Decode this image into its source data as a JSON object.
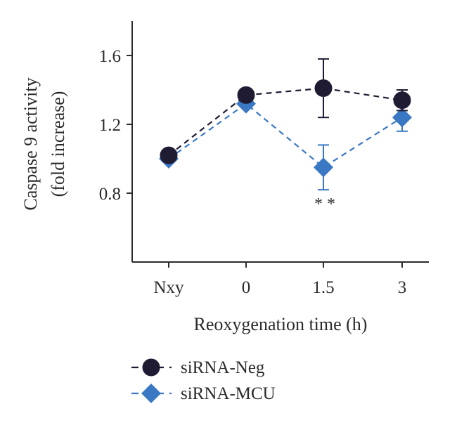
{
  "chart_data": {
    "type": "line",
    "title": "",
    "xlabel": "Reoxygenation time (h)",
    "ylabel_line1": "Caspase 9 activity",
    "ylabel_line2": "(fold increase)",
    "categories": [
      "Nxy",
      "0",
      "1.5",
      "3"
    ],
    "yticks": [
      "0.8",
      "1.2",
      "1.6"
    ],
    "ylim": [
      0.4,
      1.8
    ],
    "series": [
      {
        "name": "siRNA-Neg",
        "marker": "circle",
        "color": "#1f1b33",
        "values": [
          1.02,
          1.37,
          1.41,
          1.34
        ],
        "err": [
          0.02,
          0.03,
          0.17,
          0.06
        ]
      },
      {
        "name": "siRNA-MCU",
        "marker": "diamond",
        "color": "#3b78c4",
        "values": [
          1.0,
          1.32,
          0.95,
          1.24
        ],
        "err": [
          0.02,
          0.02,
          0.13,
          0.08
        ]
      }
    ],
    "annotations": [
      {
        "text": "**",
        "category": "1.5"
      }
    ],
    "grid": false,
    "legend_position": "bottom-left"
  }
}
